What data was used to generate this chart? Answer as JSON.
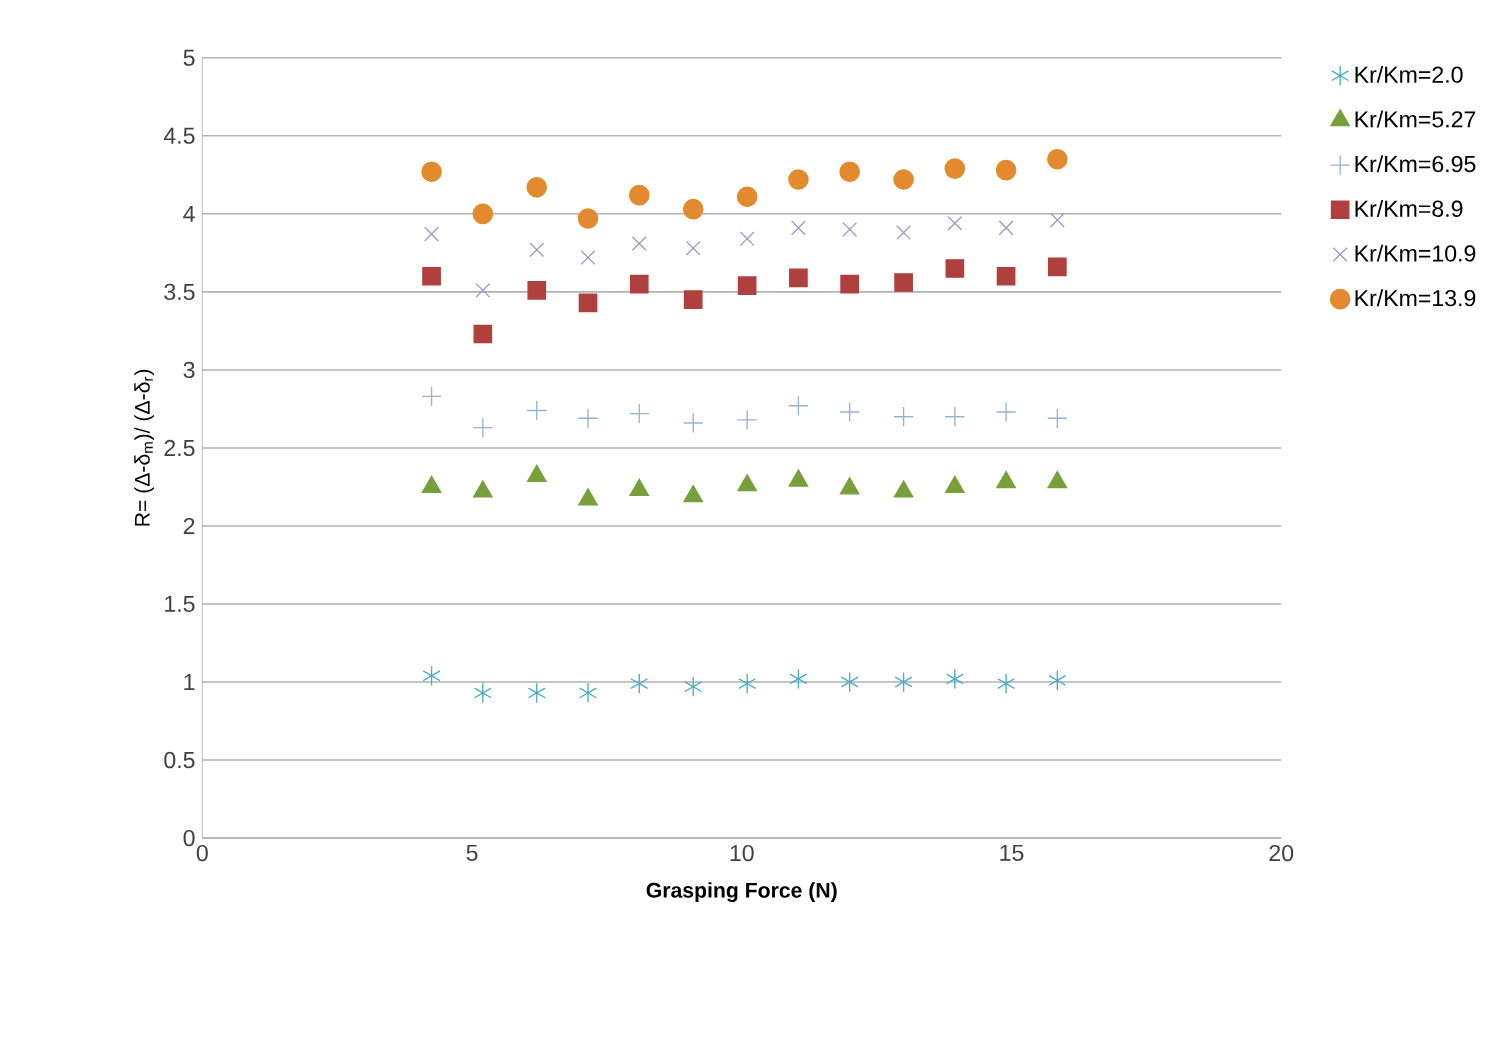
{
  "chart_data": {
    "type": "scatter",
    "xlabel": "**Grasping Force (N)**",
    "ylabel": "R= (Δ-δ$_{m}$)/ (Δ-δ$_{r}$)",
    "xlim": [
      0,
      20
    ],
    "ylim": [
      0,
      5
    ],
    "xticks": [
      0,
      5,
      10,
      15,
      20
    ],
    "yticks": [
      0,
      0.5,
      1,
      1.5,
      2,
      2.5,
      3,
      3.5,
      4,
      4.5,
      5
    ],
    "grid": "y",
    "legend": "right",
    "x": [
      4.25,
      5.2,
      6.2,
      7.15,
      8.1,
      9.1,
      10.1,
      11.05,
      12,
      13,
      13.95,
      14.9,
      15.85
    ],
    "series": [
      {
        "name": "Kr/Km=2.0",
        "color": "#4bacc6",
        "values": [
          1.04,
          0.93,
          0.93,
          0.93,
          0.99,
          0.97,
          0.99,
          1.02,
          1.0,
          1.0,
          1.02,
          0.99,
          1.01
        ]
      },
      {
        "name": "Kr/Km=5.27",
        "color": "#77a03a",
        "marker": "triangle",
        "values": [
          2.25,
          2.22,
          2.32,
          2.17,
          2.23,
          2.19,
          2.26,
          2.29,
          2.24,
          2.22,
          2.25,
          2.28,
          2.28
        ]
      },
      {
        "name": "Kr/Km=6.95",
        "color": "#95b3d7",
        "marker": "plus",
        "values": [
          2.83,
          2.63,
          2.74,
          2.69,
          2.72,
          2.66,
          2.68,
          2.77,
          2.73,
          2.7,
          2.7,
          2.73,
          2.69
        ]
      },
      {
        "name": "Kr/Km=8.9",
        "color": "#b0403e",
        "marker": "square",
        "values": [
          3.6,
          3.23,
          3.51,
          3.43,
          3.55,
          3.45,
          3.54,
          3.59,
          3.55,
          3.56,
          3.65,
          3.6,
          3.66
        ]
      },
      {
        "name": "Kr/Km=10.9",
        "color": "#a497c8",
        "marker": "cross",
        "values": [
          3.87,
          3.51,
          3.77,
          3.72,
          3.81,
          3.78,
          3.84,
          3.91,
          3.9,
          3.88,
          3.94,
          3.91,
          3.96
        ]
      },
      {
        "name": "Kr/Km=13.9",
        "color": "#e38a2f",
        "marker": "circle",
        "values": [
          4.27,
          4.0,
          4.17,
          3.97,
          4.12,
          4.03,
          4.11,
          4.22,
          4.27,
          4.22,
          4.29,
          4.28,
          4.35
        ]
      }
    ]
  }
}
